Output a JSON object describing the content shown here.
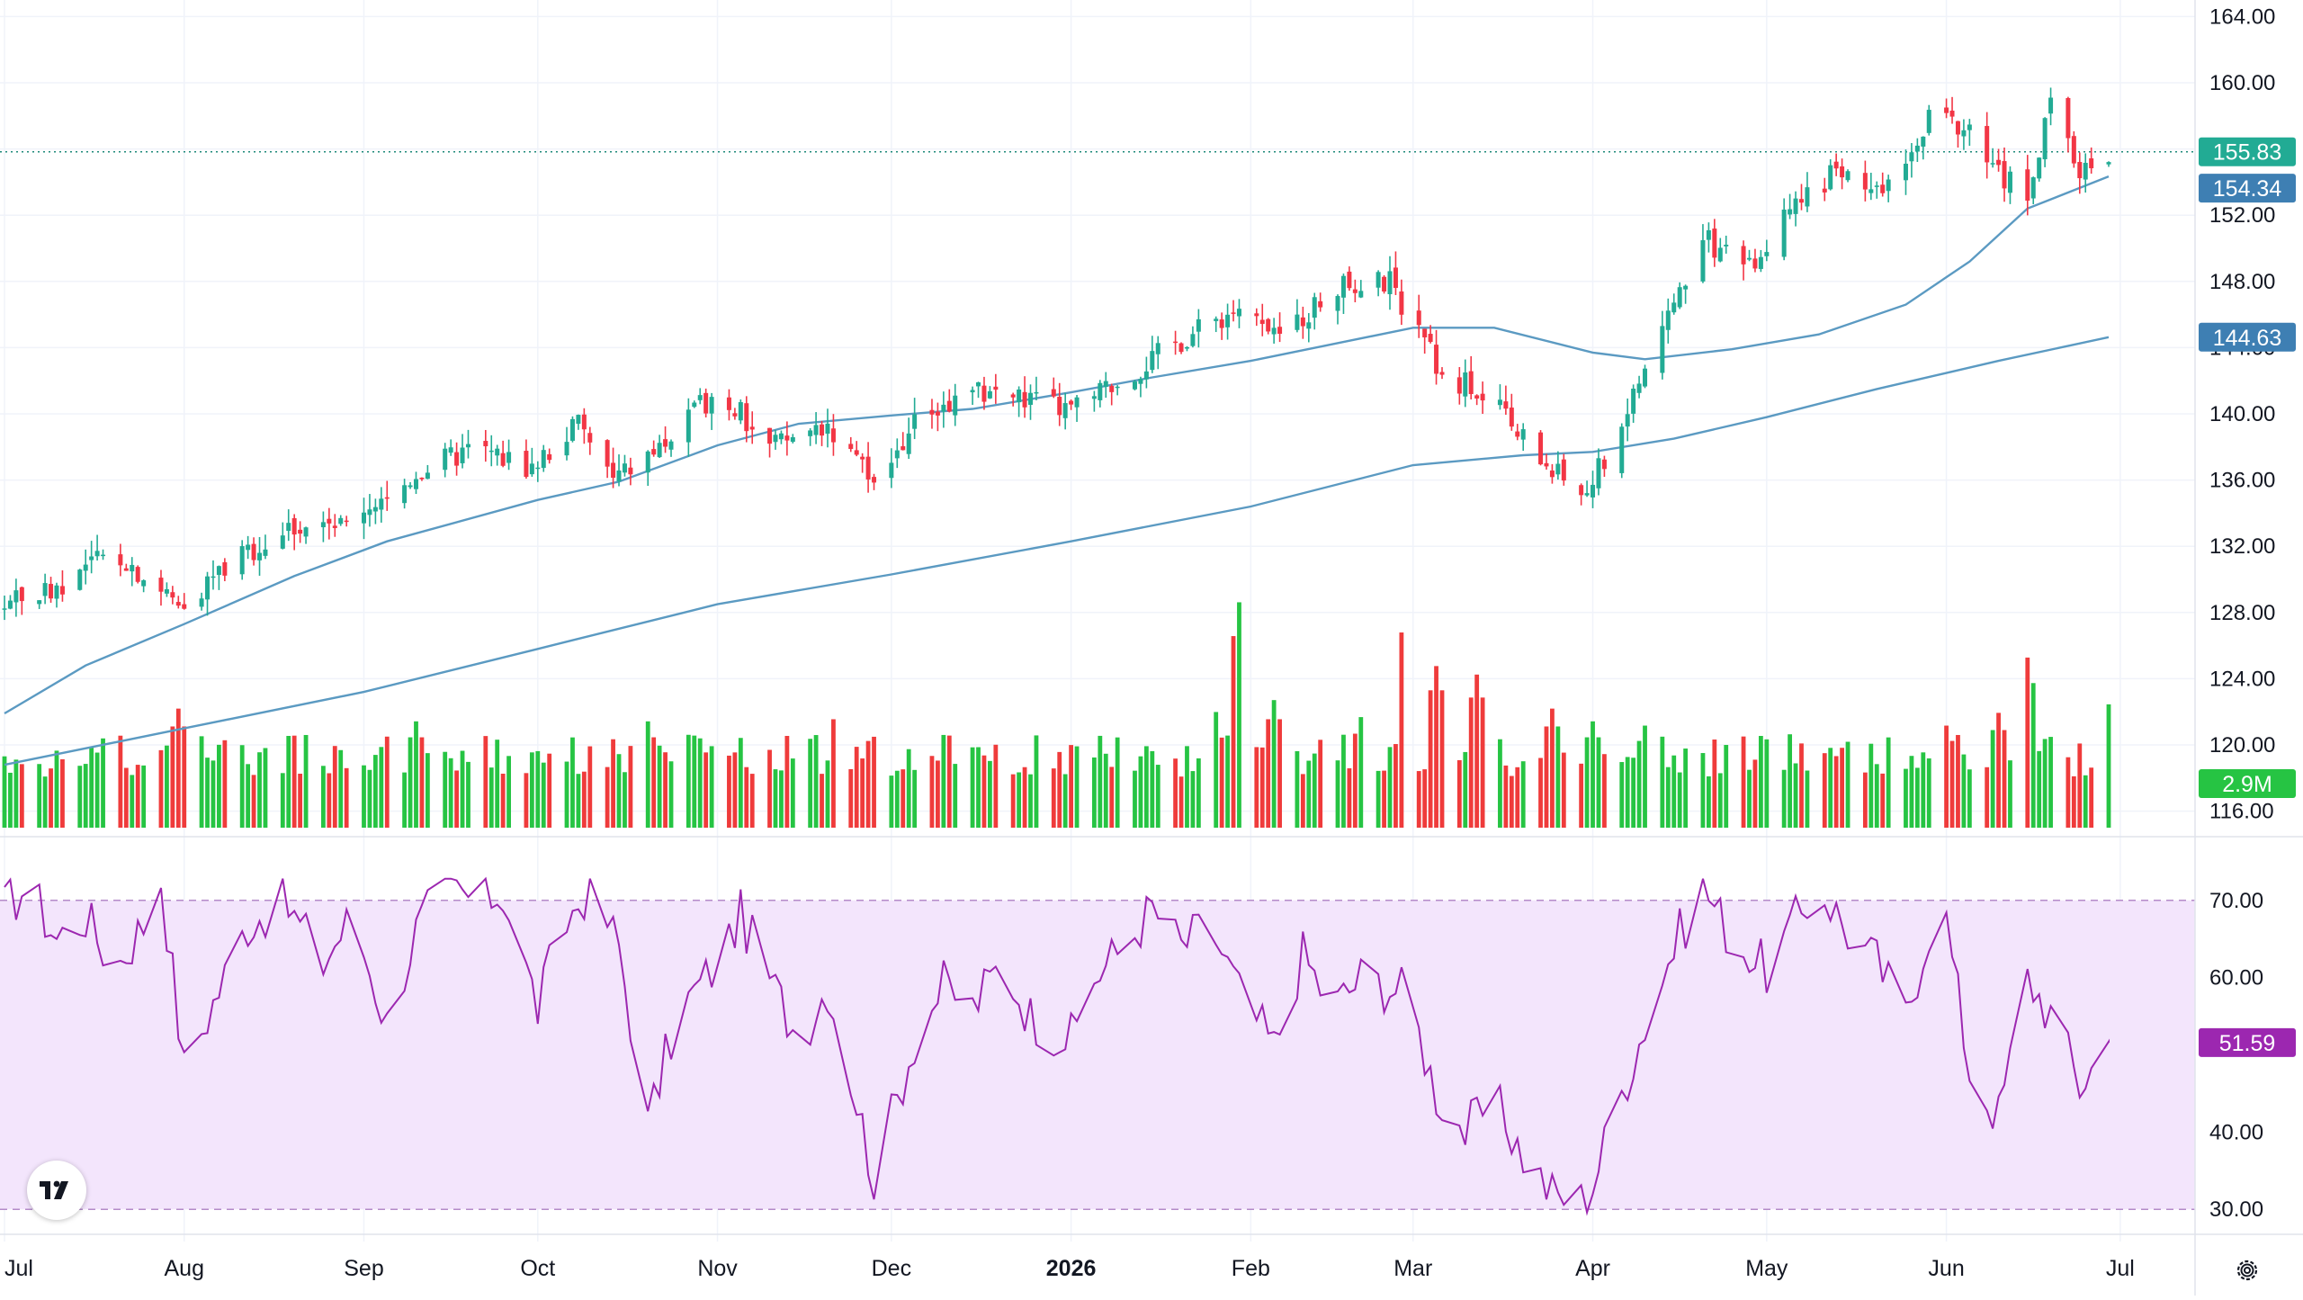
{
  "chart_data": [
    {
      "type": "candlestick",
      "panel": "price",
      "title": "",
      "y_axis_ticks": [
        "164.00",
        "160.00",
        "156.00",
        "152.00",
        "148.00",
        "144.00",
        "140.00",
        "136.00",
        "132.00",
        "128.00",
        "124.00",
        "120.00",
        "116.00"
      ],
      "ylim": [
        115,
        165
      ],
      "x_axis_ticks": [
        "Jul",
        "Aug",
        "Sep",
        "Oct",
        "Nov",
        "Dec",
        "2026",
        "Feb",
        "Mar",
        "Apr",
        "May",
        "Jun",
        "Jul"
      ],
      "x_range": [
        "2025-07-01",
        "2026-06-29"
      ],
      "last_price": {
        "value": 155.83,
        "label": "155.83",
        "color": "#22ab94"
      },
      "ma_fast": {
        "name": "",
        "last_label": "154.34",
        "color": "#5b9ac2",
        "points": [
          [
            "2025-07-01",
            121.9
          ],
          [
            "2025-07-15",
            124.8
          ],
          [
            "2025-08-01",
            127.3
          ],
          [
            "2025-08-20",
            130.2
          ],
          [
            "2025-09-05",
            132.3
          ],
          [
            "2025-10-01",
            134.8
          ],
          [
            "2025-10-15",
            135.9
          ],
          [
            "2025-11-01",
            138.1
          ],
          [
            "2025-11-15",
            139.4
          ],
          [
            "2025-12-01",
            139.9
          ],
          [
            "2025-12-15",
            140.3
          ],
          [
            "2026-01-01",
            141.3
          ],
          [
            "2026-01-15",
            142.2
          ],
          [
            "2026-02-01",
            143.2
          ],
          [
            "2026-02-15",
            144.2
          ],
          [
            "2026-03-01",
            145.2
          ],
          [
            "2026-03-15",
            145.2
          ],
          [
            "2026-04-01",
            143.7
          ],
          [
            "2026-04-10",
            143.3
          ],
          [
            "2026-04-25",
            143.9
          ],
          [
            "2026-05-10",
            144.8
          ],
          [
            "2026-05-25",
            146.6
          ],
          [
            "2026-06-05",
            149.2
          ],
          [
            "2026-06-15",
            152.4
          ],
          [
            "2026-06-29",
            154.34
          ]
        ]
      },
      "ma_slow": {
        "name": "",
        "last_label": "144.63",
        "color": "#5b9ac2",
        "points": [
          [
            "2025-07-01",
            118.8
          ],
          [
            "2025-08-01",
            121.0
          ],
          [
            "2025-09-01",
            123.2
          ],
          [
            "2025-10-01",
            125.8
          ],
          [
            "2025-11-01",
            128.5
          ],
          [
            "2025-12-01",
            130.3
          ],
          [
            "2026-01-01",
            132.3
          ],
          [
            "2026-02-01",
            134.4
          ],
          [
            "2026-03-01",
            136.9
          ],
          [
            "2026-03-20",
            137.5
          ],
          [
            "2026-04-01",
            137.7
          ],
          [
            "2026-04-15",
            138.5
          ],
          [
            "2026-05-01",
            139.8
          ],
          [
            "2026-05-20",
            141.5
          ],
          [
            "2026-06-10",
            143.2
          ],
          [
            "2026-06-29",
            144.63
          ]
        ]
      },
      "candle_path": [
        [
          "2025-07-01",
          128.5
        ],
        [
          "2025-07-10",
          129.6
        ],
        [
          "2025-07-20",
          131.8
        ],
        [
          "2025-07-31",
          128.5
        ],
        [
          "2025-08-10",
          131.3
        ],
        [
          "2025-08-20",
          133.3
        ],
        [
          "2025-08-31",
          133.1
        ],
        [
          "2025-09-10",
          136.5
        ],
        [
          "2025-09-20",
          138.0
        ],
        [
          "2025-09-30",
          136.8
        ],
        [
          "2025-10-08",
          139.5
        ],
        [
          "2025-10-14",
          136.0
        ],
        [
          "2025-10-24",
          138.5
        ],
        [
          "2025-11-01",
          141.5
        ],
        [
          "2025-11-10",
          138.0
        ],
        [
          "2025-11-20",
          139.5
        ],
        [
          "2025-11-28",
          135.5
        ],
        [
          "2025-12-06",
          140.0
        ],
        [
          "2025-12-18",
          141.5
        ],
        [
          "2026-01-01",
          140.2
        ],
        [
          "2026-01-10",
          142.2
        ],
        [
          "2026-01-20",
          144.5
        ],
        [
          "2026-01-30",
          146.5
        ],
        [
          "2026-02-05",
          144.5
        ],
        [
          "2026-02-15",
          147.5
        ],
        [
          "2026-02-25",
          148.0
        ],
        [
          "2026-03-05",
          143.0
        ],
        [
          "2026-03-15",
          140.5
        ],
        [
          "2026-03-25",
          136.5
        ],
        [
          "2026-03-31",
          135.2
        ],
        [
          "2026-04-06",
          139.5
        ],
        [
          "2026-04-12",
          144.5
        ],
        [
          "2026-04-20",
          150.5
        ],
        [
          "2026-04-28",
          149.0
        ],
        [
          "2026-05-05",
          152.0
        ],
        [
          "2026-05-12",
          154.5
        ],
        [
          "2026-05-20",
          153.0
        ],
        [
          "2026-05-27",
          157.0
        ],
        [
          "2026-06-01",
          158.5
        ],
        [
          "2026-06-10",
          154.5
        ],
        [
          "2026-06-15",
          153.5
        ],
        [
          "2026-06-19",
          158.5
        ],
        [
          "2026-06-24",
          154.8
        ],
        [
          "2026-06-29",
          155.83
        ]
      ],
      "grid": true
    },
    {
      "type": "bar",
      "panel": "volume",
      "title": "",
      "last_label": "2.9M",
      "up_color": "#26c443",
      "down_color": "#ef3b3b",
      "spikes": [
        [
          "2025-07-01",
          1.2
        ],
        [
          "2025-07-15",
          1.5
        ],
        [
          "2025-07-31",
          2.8
        ],
        [
          "2025-08-15",
          1.8
        ],
        [
          "2025-08-31",
          1.7
        ],
        [
          "2025-09-10",
          2.5
        ],
        [
          "2025-10-01",
          1.8
        ],
        [
          "2025-10-20",
          2.5
        ],
        [
          "2025-11-01",
          2.0
        ],
        [
          "2025-11-22",
          3.0
        ],
        [
          "2025-12-20",
          1.6
        ],
        [
          "2026-01-10",
          1.6
        ],
        [
          "2026-01-25",
          3.2
        ],
        [
          "2026-01-30",
          5.3
        ],
        [
          "2026-02-05",
          3.0
        ],
        [
          "2026-02-20",
          2.6
        ],
        [
          "2026-02-28",
          5.4
        ],
        [
          "2026-03-05",
          3.8
        ],
        [
          "2026-03-12",
          3.6
        ],
        [
          "2026-03-25",
          2.8
        ],
        [
          "2026-04-01",
          2.5
        ],
        [
          "2026-04-10",
          2.4
        ],
        [
          "2026-05-05",
          1.6
        ],
        [
          "2026-06-01",
          2.4
        ],
        [
          "2026-06-10",
          2.7
        ],
        [
          "2026-06-15",
          4.0
        ],
        [
          "2026-06-29",
          2.9
        ]
      ]
    },
    {
      "type": "line",
      "panel": "rsi",
      "title": "",
      "y_axis_ticks": [
        "70.00",
        "60.00",
        "40.00",
        "30.00"
      ],
      "ylim": [
        27,
        73
      ],
      "band": [
        30,
        70
      ],
      "last_label": "51.59",
      "color": "#9c27b0",
      "band_color": "#f3e5fc",
      "series": [
        [
          "2025-07-01",
          69
        ],
        [
          "2025-07-05",
          72
        ],
        [
          "2025-07-10",
          65
        ],
        [
          "2025-07-15",
          68
        ],
        [
          "2025-07-20",
          61
        ],
        [
          "2025-07-25",
          67
        ],
        [
          "2025-07-28",
          73
        ],
        [
          "2025-08-01",
          48
        ],
        [
          "2025-08-05",
          55
        ],
        [
          "2025-08-12",
          67
        ],
        [
          "2025-08-18",
          70
        ],
        [
          "2025-08-25",
          62
        ],
        [
          "2025-08-30",
          68
        ],
        [
          "2025-09-05",
          54
        ],
        [
          "2025-09-10",
          66
        ],
        [
          "2025-09-15",
          72
        ],
        [
          "2025-09-20",
          70
        ],
        [
          "2025-09-25",
          71
        ],
        [
          "2025-10-01",
          56
        ],
        [
          "2025-10-05",
          66
        ],
        [
          "2025-10-10",
          72
        ],
        [
          "2025-10-15",
          64
        ],
        [
          "2025-10-20",
          41
        ],
        [
          "2025-10-25",
          55
        ],
        [
          "2025-11-01",
          62
        ],
        [
          "2025-11-05",
          68
        ],
        [
          "2025-11-10",
          60
        ],
        [
          "2025-11-15",
          52
        ],
        [
          "2025-11-20",
          59
        ],
        [
          "2025-11-25",
          44
        ],
        [
          "2025-11-28",
          34
        ],
        [
          "2025-12-05",
          52
        ],
        [
          "2025-12-10",
          59
        ],
        [
          "2025-12-15",
          56
        ],
        [
          "2025-12-20",
          62
        ],
        [
          "2025-12-25",
          55
        ],
        [
          "2026-01-01",
          52
        ],
        [
          "2026-01-05",
          60
        ],
        [
          "2026-01-10",
          64
        ],
        [
          "2026-01-15",
          69
        ],
        [
          "2026-01-20",
          64
        ],
        [
          "2026-01-25",
          67
        ],
        [
          "2026-01-30",
          58
        ],
        [
          "2026-02-05",
          51
        ],
        [
          "2026-02-10",
          63
        ],
        [
          "2026-02-15",
          56
        ],
        [
          "2026-02-20",
          60
        ],
        [
          "2026-02-28",
          58
        ],
        [
          "2026-03-05",
          45
        ],
        [
          "2026-03-10",
          40
        ],
        [
          "2026-03-15",
          44
        ],
        [
          "2026-03-20",
          37
        ],
        [
          "2026-03-25",
          32
        ],
        [
          "2026-03-31",
          31
        ],
        [
          "2026-04-05",
          43
        ],
        [
          "2026-04-10",
          54
        ],
        [
          "2026-04-15",
          64
        ],
        [
          "2026-04-20",
          72
        ],
        [
          "2026-04-25",
          65
        ],
        [
          "2026-05-01",
          61
        ],
        [
          "2026-05-05",
          66
        ],
        [
          "2026-05-10",
          72
        ],
        [
          "2026-05-15",
          66
        ],
        [
          "2026-05-20",
          62
        ],
        [
          "2026-05-25",
          55
        ],
        [
          "2026-05-31",
          72
        ],
        [
          "2026-06-05",
          48
        ],
        [
          "2026-06-10",
          42
        ],
        [
          "2026-06-15",
          60
        ],
        [
          "2026-06-20",
          54
        ],
        [
          "2026-06-24",
          46
        ],
        [
          "2026-06-29",
          51.59
        ]
      ],
      "grid": true
    }
  ],
  "branding": {
    "logo_text": "TV"
  },
  "icons": {
    "logo": "tradingview-logo-icon",
    "settings": "settings-gear-icon"
  }
}
